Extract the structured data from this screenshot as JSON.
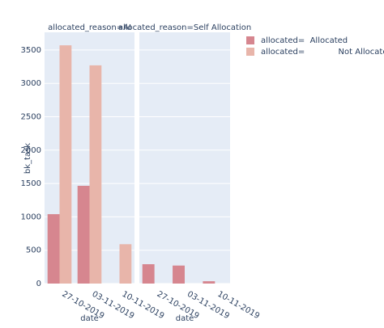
{
  "chart_data": {
    "type": "bar",
    "ylabel": "bk_task",
    "xlabel": "date",
    "categories": [
      "27-10-2019",
      "03-11-2019",
      "10-11-2019"
    ],
    "series": [
      {
        "name": "allocated=  Allocated",
        "color": "#d6868f"
      },
      {
        "name": "allocated=             Not Allocated",
        "color": "#e8b5aa"
      }
    ],
    "facets": [
      {
        "title": "allocated_reason=AI",
        "series": [
          {
            "values": [
              1040,
              1465,
              null
            ]
          },
          {
            "values": [
              3570,
              3270,
              590
            ]
          }
        ]
      },
      {
        "title": "allocated_reason=Self Allocation",
        "series": [
          {
            "values": [
              290,
              270,
              35
            ]
          },
          {
            "values": [
              null,
              null,
              null
            ]
          }
        ]
      }
    ],
    "ylim": [
      0,
      3765
    ],
    "yticks": [
      0,
      500,
      1000,
      1500,
      2000,
      2500,
      3000,
      3500
    ],
    "grid": true
  }
}
